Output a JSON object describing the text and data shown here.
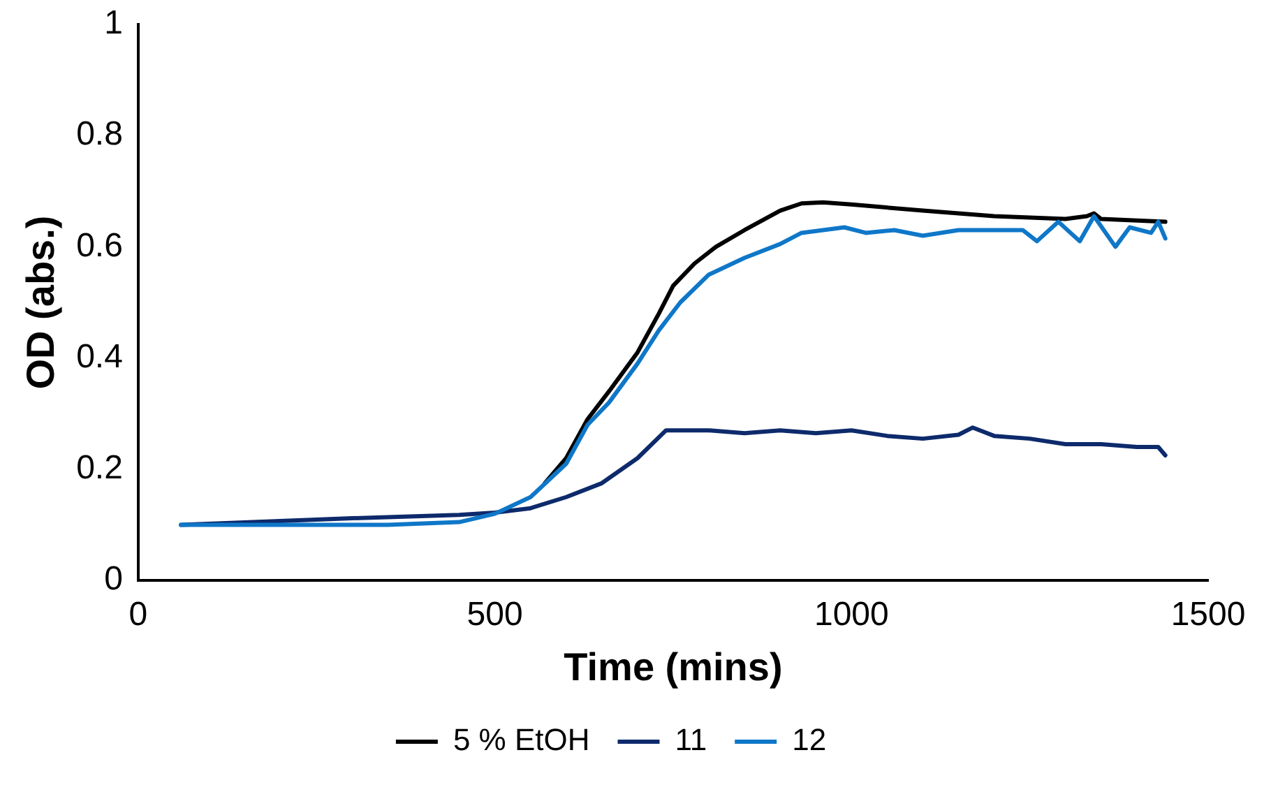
{
  "chart_data": {
    "type": "line",
    "xlabel": "Time (mins)",
    "ylabel": "OD (abs.)",
    "xlim": [
      0,
      1500
    ],
    "xticks": [
      0,
      500,
      1000,
      1500
    ],
    "ylim": [
      0,
      1
    ],
    "yticks": [
      0,
      0.2,
      0.4,
      0.6,
      0.8,
      1
    ],
    "grid": false,
    "legend": "bottom",
    "marker": "none",
    "line_style": "solid",
    "series": [
      {
        "name": "5 % EtOH",
        "color": "#000000",
        "x": [
          570,
          600,
          630,
          660,
          700,
          730,
          750,
          780,
          810,
          850,
          900,
          930,
          960,
          1000,
          1100,
          1200,
          1300,
          1330,
          1340,
          1350,
          1440
        ],
        "values": [
          0.175,
          0.22,
          0.29,
          0.34,
          0.41,
          0.48,
          0.53,
          0.57,
          0.6,
          0.63,
          0.665,
          0.678,
          0.68,
          0.676,
          0.665,
          0.655,
          0.65,
          0.655,
          0.66,
          0.65,
          0.645
        ]
      },
      {
        "name": "11",
        "color": "#0d2a6b",
        "x": [
          60,
          300,
          450,
          500,
          550,
          600,
          650,
          700,
          740,
          800,
          850,
          900,
          950,
          1000,
          1050,
          1100,
          1150,
          1170,
          1200,
          1250,
          1300,
          1350,
          1400,
          1430,
          1440
        ],
        "values": [
          0.1,
          0.112,
          0.118,
          0.122,
          0.13,
          0.15,
          0.175,
          0.22,
          0.27,
          0.27,
          0.265,
          0.27,
          0.265,
          0.27,
          0.26,
          0.255,
          0.262,
          0.275,
          0.26,
          0.255,
          0.245,
          0.245,
          0.24,
          0.24,
          0.225
        ]
      },
      {
        "name": "12",
        "color": "#0f77c8",
        "x": [
          60,
          200,
          350,
          450,
          500,
          550,
          600,
          630,
          660,
          700,
          730,
          760,
          800,
          850,
          900,
          930,
          960,
          990,
          1020,
          1060,
          1100,
          1150,
          1200,
          1240,
          1260,
          1290,
          1320,
          1340,
          1370,
          1390,
          1420,
          1430,
          1440
        ],
        "values": [
          0.1,
          0.1,
          0.1,
          0.105,
          0.12,
          0.15,
          0.21,
          0.28,
          0.32,
          0.39,
          0.45,
          0.5,
          0.55,
          0.58,
          0.605,
          0.625,
          0.63,
          0.635,
          0.625,
          0.63,
          0.62,
          0.63,
          0.63,
          0.63,
          0.61,
          0.645,
          0.61,
          0.655,
          0.6,
          0.635,
          0.625,
          0.645,
          0.615
        ]
      }
    ]
  }
}
